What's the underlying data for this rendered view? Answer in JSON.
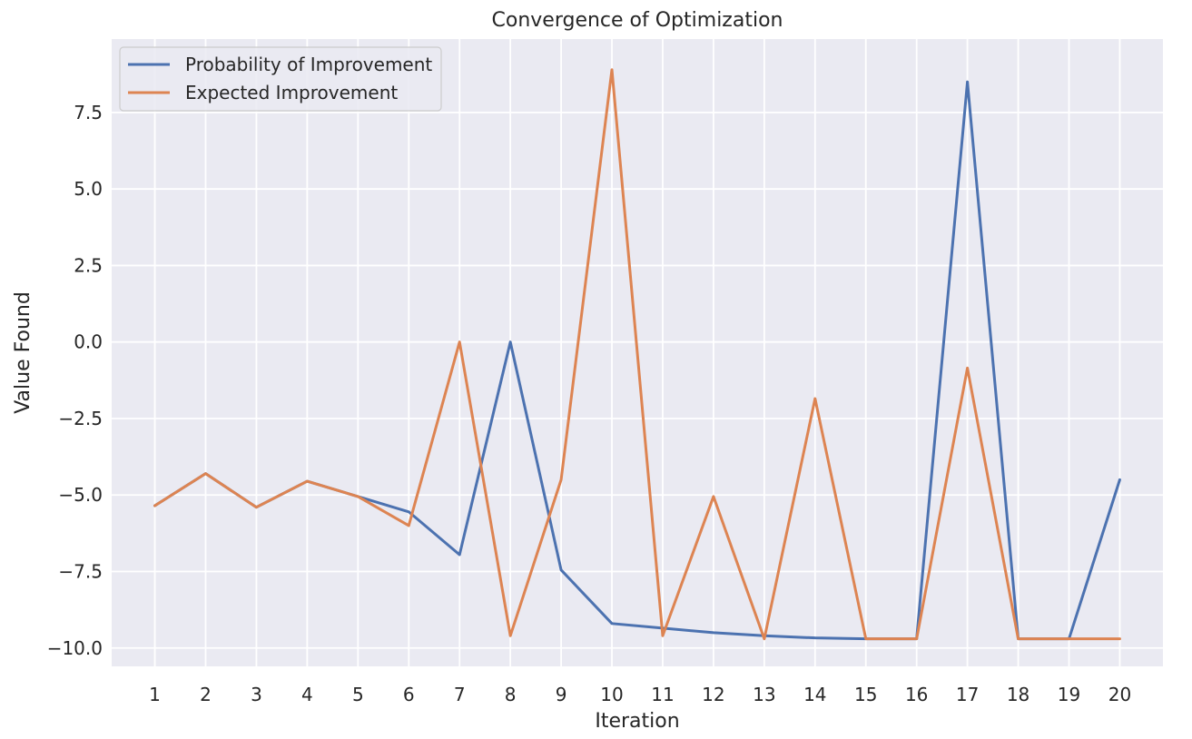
{
  "chart_data": {
    "type": "line",
    "title": "Convergence of Optimization",
    "xlabel": "Iteration",
    "ylabel": "Value Found",
    "x": [
      1,
      2,
      3,
      4,
      5,
      6,
      7,
      8,
      9,
      10,
      11,
      12,
      13,
      14,
      15,
      16,
      17,
      18,
      19,
      20
    ],
    "xlim": [
      0.15,
      20.85
    ],
    "ylim": [
      -10.6,
      9.9
    ],
    "yticks": [
      -10.0,
      -7.5,
      -5.0,
      -2.5,
      0.0,
      2.5,
      5.0,
      7.5
    ],
    "ytick_labels": [
      "−10.0",
      "−7.5",
      "−5.0",
      "−2.5",
      "0.0",
      "2.5",
      "5.0",
      "7.5"
    ],
    "grid": true,
    "legend_position": "top-left",
    "background_color": "#eaeaf2",
    "grid_color": "#ffffff",
    "series": [
      {
        "name": "Probability of Improvement",
        "color": "#4c72b0",
        "values": [
          -5.35,
          -4.3,
          -5.4,
          -4.55,
          -5.05,
          -5.55,
          -6.95,
          0.0,
          -7.45,
          -9.2,
          -9.35,
          -9.5,
          -9.6,
          -9.67,
          -9.7,
          -9.7,
          8.5,
          -9.7,
          -9.7,
          -4.5
        ]
      },
      {
        "name": "Expected Improvement",
        "color": "#dd8452",
        "values": [
          -5.35,
          -4.3,
          -5.4,
          -4.55,
          -5.05,
          -6.0,
          0.0,
          -9.6,
          -4.5,
          8.9,
          -9.6,
          -5.05,
          -9.7,
          -1.85,
          -9.7,
          -9.7,
          -0.85,
          -9.7,
          -9.7,
          -9.7
        ]
      }
    ]
  }
}
